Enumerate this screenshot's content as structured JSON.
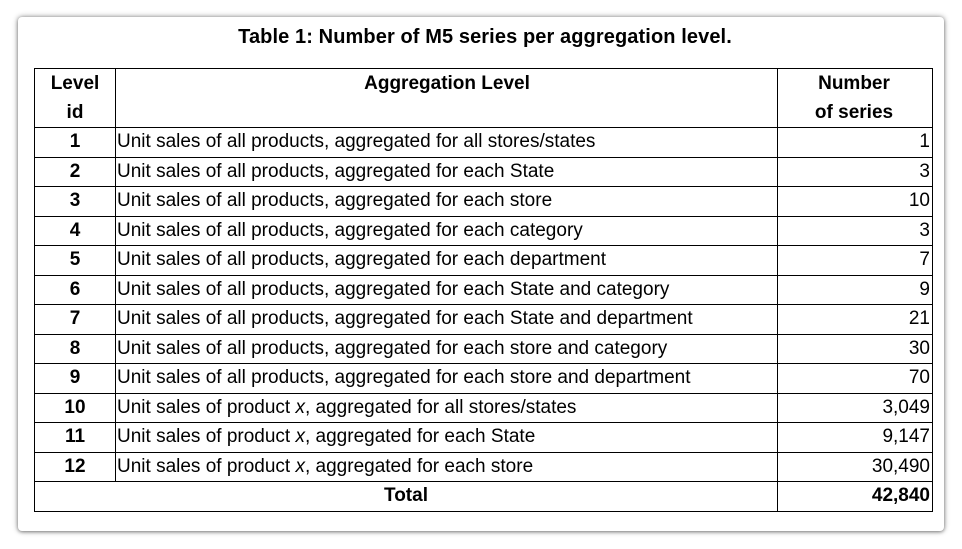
{
  "caption": "Table 1: Number of M5 series per aggregation level.",
  "columns": {
    "level_line1": "Level",
    "level_line2": "id",
    "aggregation": "Aggregation Level",
    "count_line1": "Number",
    "count_line2": "of series"
  },
  "rows": [
    {
      "level": "1",
      "prefix": "Unit sales of all products, aggregated for all stores/states",
      "x": "",
      "suffix": "",
      "count": "1"
    },
    {
      "level": "2",
      "prefix": "Unit sales of all products, aggregated for each State",
      "x": "",
      "suffix": "",
      "count": "3"
    },
    {
      "level": "3",
      "prefix": "Unit sales of all products, aggregated for each store",
      "x": "",
      "suffix": "",
      "count": "10"
    },
    {
      "level": "4",
      "prefix": "Unit sales of all products, aggregated for each category",
      "x": "",
      "suffix": "",
      "count": "3"
    },
    {
      "level": "5",
      "prefix": "Unit sales of all products, aggregated for each department",
      "x": "",
      "suffix": "",
      "count": "7"
    },
    {
      "level": "6",
      "prefix": "Unit sales of all products, aggregated for each State and category",
      "x": "",
      "suffix": "",
      "count": "9"
    },
    {
      "level": "7",
      "prefix": "Unit sales of all products, aggregated for each State and department",
      "x": "",
      "suffix": "",
      "count": "21"
    },
    {
      "level": "8",
      "prefix": "Unit sales of all products, aggregated for each store and category",
      "x": "",
      "suffix": "",
      "count": "30"
    },
    {
      "level": "9",
      "prefix": "Unit sales of all products, aggregated for each store and department",
      "x": "",
      "suffix": "",
      "count": "70"
    },
    {
      "level": "10",
      "prefix": "Unit sales of product ",
      "x": "x",
      "suffix": ", aggregated for all stores/states",
      "count": "3,049"
    },
    {
      "level": "11",
      "prefix": "Unit sales of product ",
      "x": "x",
      "suffix": ", aggregated for each State",
      "count": "9,147"
    },
    {
      "level": "12",
      "prefix": "Unit sales of product ",
      "x": "x",
      "suffix": ", aggregated for each store",
      "count": "30,490"
    }
  ],
  "total": {
    "label": "Total",
    "count": "42,840"
  }
}
